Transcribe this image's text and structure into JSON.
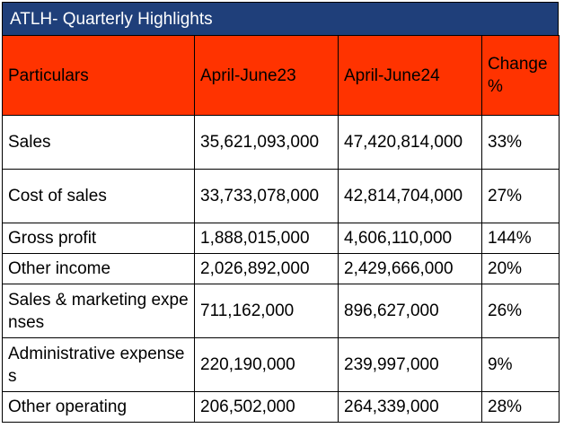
{
  "title": "ATLH- Quarterly Highlights",
  "colors": {
    "title_bg": "#1f3f7a",
    "title_text": "#ffffff",
    "header_bg": "#ff3300"
  },
  "table": {
    "headers": [
      "Particulars",
      "April-June23",
      "April-June24",
      "Change %"
    ],
    "rows": [
      [
        "Sales",
        "35,621,093,000",
        "47,420,814,000",
        "33%"
      ],
      [
        "Cost of sales",
        "33,733,078,000",
        "42,814,704,000",
        "27%"
      ],
      [
        "Gross profit",
        "1,888,015,000",
        "4,606,110,000",
        "144%"
      ],
      [
        "Other income",
        "2,026,892,000",
        "2,429,666,000",
        "20%"
      ],
      [
        "Sales & marketing expenses",
        "711,162,000",
        "896,627,000",
        "26%"
      ],
      [
        "Administrative expenses",
        "220,190,000",
        "239,997,000",
        "9%"
      ],
      [
        "Other operating",
        "206,502,000",
        "264,339,000",
        "28%"
      ]
    ]
  }
}
